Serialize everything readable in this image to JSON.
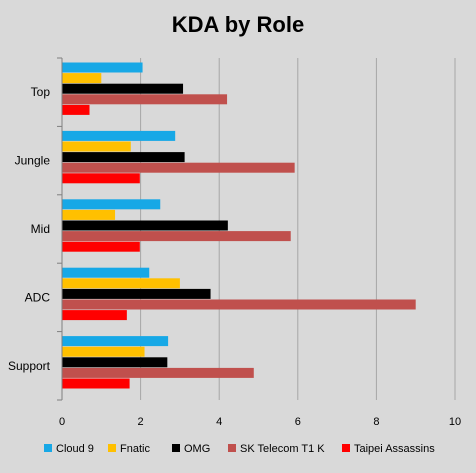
{
  "chart_data": {
    "type": "bar",
    "orientation": "horizontal",
    "title": "KDA by Role",
    "xlabel": "",
    "ylabel": "",
    "xlim": [
      0,
      10
    ],
    "xticks": [
      0,
      2,
      4,
      6,
      8,
      10
    ],
    "grid": "vertical",
    "legend_position": "bottom",
    "categories": [
      "Top",
      "Jungle",
      "Mid",
      "ADC",
      "Support"
    ],
    "series": [
      {
        "name": "Cloud 9",
        "color": "#17a8e6",
        "values": [
          2.05,
          2.88,
          2.5,
          2.22,
          2.7
        ]
      },
      {
        "name": "Fnatic",
        "color": "#ffc000",
        "values": [
          1.0,
          1.75,
          1.35,
          3.0,
          2.1
        ]
      },
      {
        "name": "OMG",
        "color": "#000000",
        "values": [
          3.08,
          3.12,
          4.22,
          3.78,
          2.68
        ]
      },
      {
        "name": "SK Telecom T1 K",
        "color": "#c0504d",
        "values": [
          4.2,
          5.92,
          5.82,
          9.0,
          4.88
        ]
      },
      {
        "name": "Taipei Assassins",
        "color": "#ff0000",
        "values": [
          0.7,
          1.98,
          1.98,
          1.65,
          1.72
        ]
      }
    ]
  }
}
